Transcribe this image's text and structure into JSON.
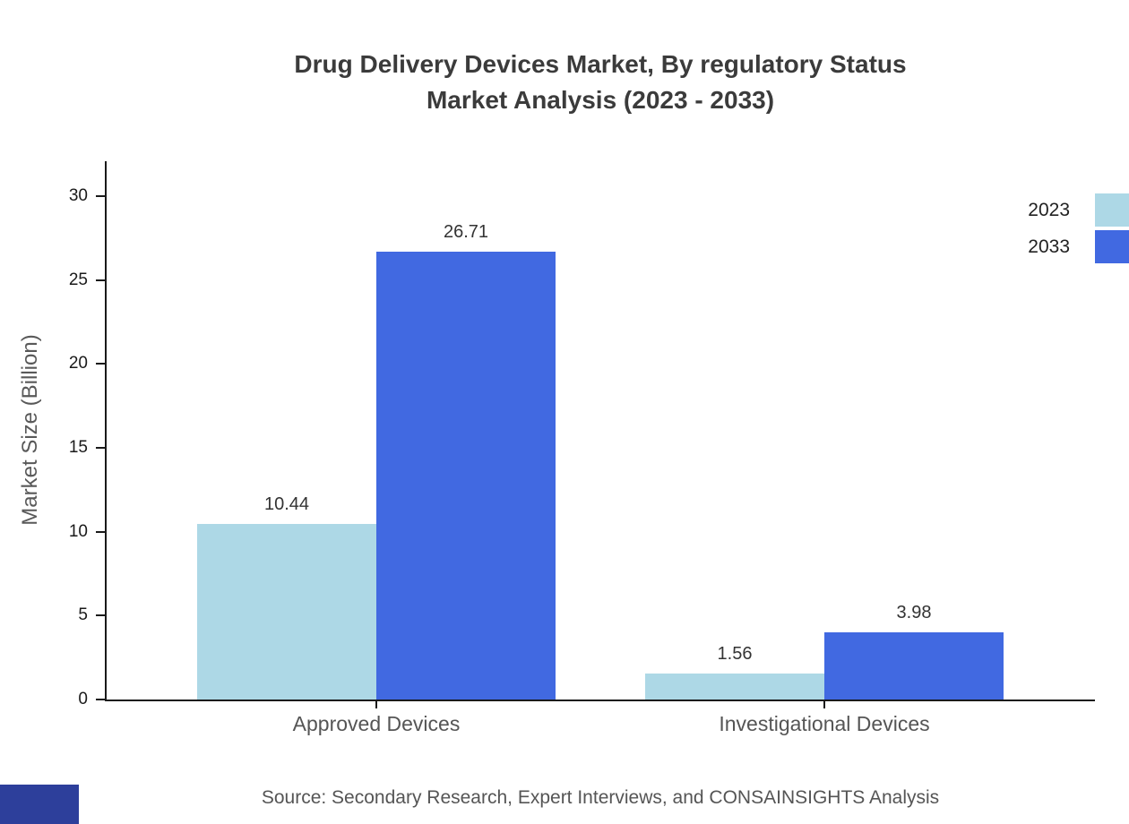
{
  "title": {
    "line1": "Drug Delivery Devices Market, By regulatory Status",
    "line2": "Market Analysis (2023 - 2033)"
  },
  "footer": {
    "source": "Source: Secondary Research, Expert Interviews, and CONSAINSIGHTS Analysis",
    "brand_color": "#2d3f9b"
  },
  "chart_data": {
    "type": "bar",
    "title": "Drug Delivery Devices Market, By regulatory Status Market Analysis (2023 - 2033)",
    "categories": [
      "Approved Devices",
      "Investigational Devices"
    ],
    "series": [
      {
        "name": "2023",
        "color": "#ADD8E6",
        "values": [
          10.44,
          1.56
        ]
      },
      {
        "name": "2033",
        "color": "#4169E1",
        "values": [
          26.71,
          3.98
        ]
      }
    ],
    "xlabel": "",
    "ylabel": "Market Size (Billion)",
    "yticks": [
      0,
      5,
      10,
      15,
      20,
      25,
      30
    ],
    "ylim": [
      0,
      32
    ],
    "grid": false,
    "value_labels": true,
    "legend_position": "top-right"
  }
}
